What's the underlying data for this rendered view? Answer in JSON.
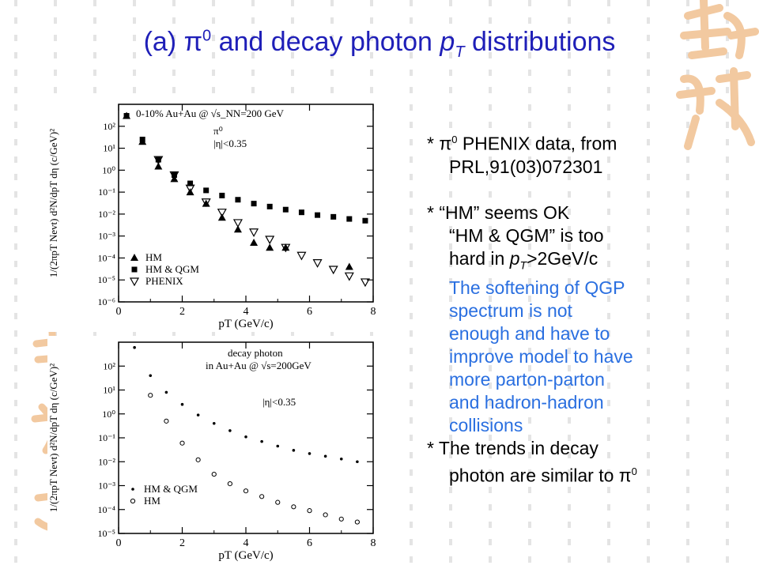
{
  "slide": {
    "title_prefix": "(a) ",
    "title_pi": "π",
    "title_pi_sup": "0",
    "title_mid": " and decay photon ",
    "title_p": "p",
    "title_sub": "T",
    "title_suffix": " distributions",
    "accent_color": "#1f1fb8",
    "link_blue": "#2a6fe0",
    "deco_color": "#f2c9a0"
  },
  "notes": {
    "l1_star": "* ",
    "l1_pi": "π",
    "l1_sup": "0",
    "l1_rest": " PHENIX data, from",
    "l2": "PRL,91(03)072301",
    "l3": "* “HM” seems OK",
    "l4": "“HM & QGM” is too",
    "l5_a": "hard in ",
    "l5_p": "p",
    "l5_sub": "T",
    "l5_b": ">2GeV/c",
    "blue_lines": [
      "The softening of QGP",
      "spectrum is not",
      "enough and have to",
      "improve model to have",
      "more parton-parton",
      "and hadron-hadron",
      "collisions"
    ],
    "l6": "* The trends in decay",
    "l7_a": "photon are similar to ",
    "l7_pi": "π",
    "l7_sup": "0"
  },
  "chart_data": [
    {
      "type": "scatter",
      "ylabel": "1/(2πp_T N_evt) d²N/dp_T dη (c/GeV)²",
      "xlabel": "p_T (GeV/c)",
      "annotations": [
        "0-10% Au+Au @ √s_NN=200 GeV",
        "π⁰",
        "|η|<0.35"
      ],
      "x_ticks": [
        "0",
        "2",
        "4",
        "6",
        "8"
      ],
      "y_ticks": [
        "10²",
        "10¹",
        "10⁰",
        "10⁻¹",
        "10⁻²",
        "10⁻³",
        "10⁻⁴",
        "10⁻⁵",
        "10⁻⁶"
      ],
      "xlim": [
        0,
        8
      ],
      "ylim_log10": [
        -6,
        3
      ],
      "scale_y": "log",
      "legend": "bottom-left",
      "series": [
        {
          "name": "HM",
          "marker": "filled-triangle",
          "x": [
            0.25,
            0.75,
            1.25,
            1.75,
            2.25,
            2.75,
            3.25,
            3.75,
            4.25,
            4.75,
            5.25,
            7.25
          ],
          "y": [
            300,
            20,
            1.5,
            0.4,
            0.1,
            0.03,
            0.007,
            0.002,
            0.0005,
            0.0003,
            0.0003,
            4e-05
          ]
        },
        {
          "name": "HM & QGM",
          "marker": "filled-square",
          "x": [
            0.25,
            0.75,
            1.25,
            1.75,
            2.25,
            2.75,
            3.25,
            3.75,
            4.25,
            4.75,
            5.25,
            5.75,
            6.25,
            6.75,
            7.25,
            7.75
          ],
          "y": [
            300,
            25,
            3,
            0.6,
            0.25,
            0.12,
            0.07,
            0.045,
            0.03,
            0.022,
            0.016,
            0.012,
            0.009,
            0.0075,
            0.006,
            0.005
          ]
        },
        {
          "name": "PHENIX",
          "marker": "open-triangle-down",
          "x": [
            1.25,
            1.75,
            2.25,
            2.75,
            3.25,
            3.75,
            4.25,
            4.75,
            5.25,
            5.75,
            6.25,
            6.75,
            7.25,
            7.75
          ],
          "y": [
            3,
            0.6,
            0.15,
            0.035,
            0.012,
            0.004,
            0.0015,
            0.0007,
            0.0003,
            0.00013,
            6e-05,
            3e-05,
            1.5e-05,
            8e-06
          ]
        }
      ]
    },
    {
      "type": "scatter",
      "ylabel": "1/(2πp_T N_evt) d²N/dp_T dη (c/GeV)²",
      "xlabel": "p_T (GeV/c)",
      "annotations": [
        "decay photon",
        "in Au+Au @ √s=200GeV",
        "|η|<0.35"
      ],
      "x_ticks": [
        "0",
        "2",
        "4",
        "6",
        "8"
      ],
      "y_ticks": [
        "10²",
        "10¹",
        "10⁰",
        "10⁻¹",
        "10⁻²",
        "10⁻³",
        "10⁻⁴",
        "10⁻⁵"
      ],
      "xlim": [
        0,
        8
      ],
      "ylim_log10": [
        -5,
        3
      ],
      "scale_y": "log",
      "legend": "bottom-left",
      "series": [
        {
          "name": "HM & QGM",
          "marker": "dot",
          "x": [
            0.5,
            1.0,
            1.5,
            2.0,
            2.5,
            3.0,
            3.5,
            4.0,
            4.5,
            5.0,
            5.5,
            6.0,
            6.5,
            7.0,
            7.5
          ],
          "y": [
            600,
            40,
            8,
            2.5,
            0.9,
            0.4,
            0.2,
            0.11,
            0.07,
            0.045,
            0.03,
            0.022,
            0.017,
            0.013,
            0.01
          ]
        },
        {
          "name": "HM",
          "marker": "open-circle",
          "x": [
            1.0,
            1.5,
            2.0,
            2.5,
            3.0,
            3.5,
            4.0,
            4.5,
            5.0,
            5.5,
            6.0,
            6.5,
            7.0,
            7.5
          ],
          "y": [
            6,
            0.5,
            0.06,
            0.012,
            0.003,
            0.0012,
            0.0006,
            0.00035,
            0.0002,
            0.00013,
            9e-05,
            6e-05,
            4e-05,
            3e-05
          ]
        }
      ]
    }
  ]
}
